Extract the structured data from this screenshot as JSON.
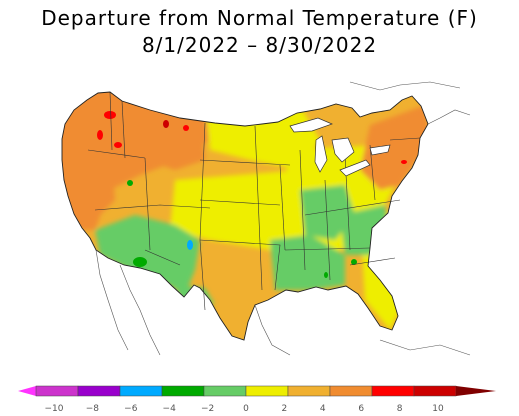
{
  "title": {
    "line1": "Departure from Normal Temperature (F)",
    "line2": "8/1/2022 – 8/30/2022"
  },
  "map": {
    "region": "Contiguous United States",
    "field": "temperature departure from normal",
    "units": "°F",
    "regional_values": [
      {
        "region": "Pacific Northwest",
        "value": 6
      },
      {
        "region": "Northern Rockies",
        "value": 5
      },
      {
        "region": "Northern Plains",
        "value": 2
      },
      {
        "region": "California",
        "value": 4
      },
      {
        "region": "Great Basin",
        "value": 4
      },
      {
        "region": "Desert Southwest",
        "value": -2
      },
      {
        "region": "Southern Plains",
        "value": 1
      },
      {
        "region": "Midwest",
        "value": 1
      },
      {
        "region": "Lower Mississippi Valley",
        "value": -1
      },
      {
        "region": "Southeast",
        "value": 1
      },
      {
        "region": "Florida",
        "value": 2
      },
      {
        "region": "Mid-Atlantic",
        "value": 3
      },
      {
        "region": "New England",
        "value": 4
      }
    ]
  },
  "legend": {
    "ticks": [
      "−10",
      "−8",
      "−6",
      "−4",
      "−2",
      "0",
      "2",
      "4",
      "6",
      "8",
      "10"
    ],
    "bins": [
      {
        "from": -10,
        "to": -8,
        "color": "#cc33cc"
      },
      {
        "from": -8,
        "to": -6,
        "color": "#9900cc"
      },
      {
        "from": -6,
        "to": -4,
        "color": "#00aaff"
      },
      {
        "from": -4,
        "to": -2,
        "color": "#00aa00"
      },
      {
        "from": -2,
        "to": 0,
        "color": "#66cc66"
      },
      {
        "from": 0,
        "to": 2,
        "color": "#eeee00"
      },
      {
        "from": 2,
        "to": 4,
        "color": "#f0b030"
      },
      {
        "from": 4,
        "to": 6,
        "color": "#f08c30"
      },
      {
        "from": 6,
        "to": 8,
        "color": "#ff0000"
      },
      {
        "from": 8,
        "to": 10,
        "color": "#cc0000"
      }
    ],
    "low_end_color": "#ff33ff",
    "high_end_color": "#800000"
  }
}
